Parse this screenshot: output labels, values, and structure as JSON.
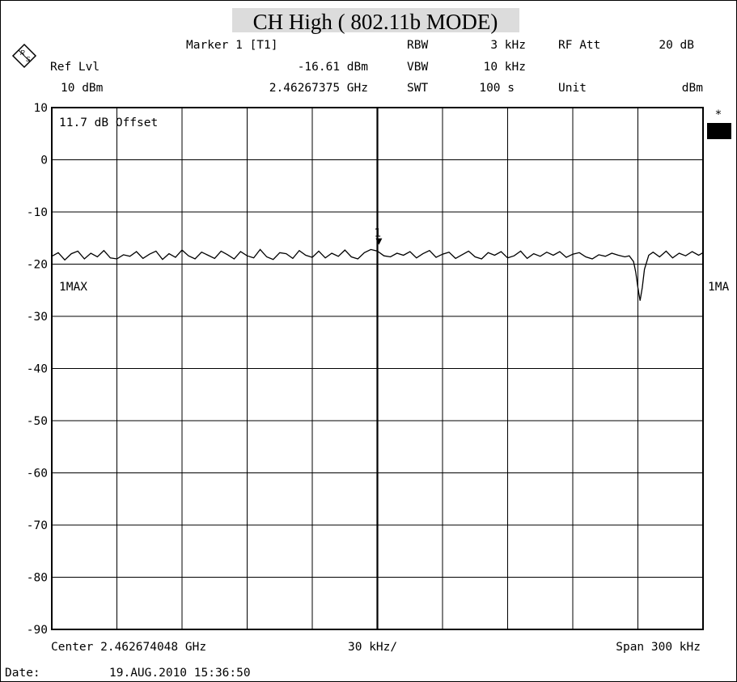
{
  "header": {
    "title": "CH High ( 802.11b MODE)",
    "marker_label": "Marker 1 [T1]",
    "marker_level": "-16.61 dBm",
    "marker_freq": "2.46267375 GHz",
    "ref_lvl_label": "Ref Lvl",
    "ref_lvl_value": "10 dBm",
    "rbw_label": "RBW",
    "rbw_value": "3 kHz",
    "vbw_label": "VBW",
    "vbw_value": "10 kHz",
    "swt_label": "SWT",
    "swt_value": "100 s",
    "rf_att_label": "RF Att",
    "rf_att_value": "20 dB",
    "unit_label": "Unit",
    "unit_value": "dBm"
  },
  "plot": {
    "offset_label": "11.7 dB Offset",
    "trace_label_left": "1MAX",
    "trace_label_right": "1MA",
    "marker_number": "1",
    "star": "*"
  },
  "footer": {
    "center": "Center 2.462674048 GHz",
    "div": "30 kHz/",
    "span": "Span 300 kHz",
    "date_label": "Date:",
    "date_value": "19.AUG.2010  15:36:50"
  },
  "chart_data": {
    "type": "line",
    "title": "CH High ( 802.11b MODE)",
    "xlabel": "",
    "ylabel": "dBm",
    "x_unit": "kHz offset from center",
    "xlim": [
      -150,
      150
    ],
    "ylim": [
      -90,
      10
    ],
    "yticks": [
      10,
      0,
      -10,
      -20,
      -30,
      -40,
      -50,
      -60,
      -70,
      -80,
      -90
    ],
    "grid": true,
    "series": [
      {
        "x": [
          -150,
          -147,
          -144,
          -141,
          -138,
          -135,
          -132,
          -129,
          -126,
          -123,
          -120,
          -117,
          -114,
          -111,
          -108,
          -105,
          -102,
          -99,
          -96,
          -93,
          -90,
          -87,
          -84,
          -81,
          -78,
          -75,
          -72,
          -69,
          -66,
          -63,
          -60,
          -57,
          -54,
          -51,
          -48,
          -45,
          -42,
          -39,
          -36,
          -33,
          -30,
          -27,
          -24,
          -21,
          -18,
          -15,
          -12,
          -9,
          -6,
          -3,
          0,
          3,
          6,
          9,
          12,
          15,
          18,
          21,
          24,
          27,
          30,
          33,
          36,
          39,
          42,
          45,
          48,
          51,
          54,
          57,
          60,
          63,
          66,
          69,
          72,
          75,
          78,
          81,
          84,
          87,
          90,
          93,
          96,
          99,
          102,
          105,
          108,
          111,
          114,
          116,
          118,
          119,
          120,
          121,
          122,
          123,
          125,
          127,
          130,
          133,
          136,
          139,
          142,
          145,
          148,
          150
        ],
        "y": [
          -18.5,
          -17.8,
          -19.2,
          -18.0,
          -17.5,
          -19.0,
          -17.9,
          -18.6,
          -17.4,
          -18.8,
          -19.0,
          -18.2,
          -18.5,
          -17.6,
          -18.9,
          -18.1,
          -17.5,
          -19.1,
          -18.0,
          -18.7,
          -17.3,
          -18.4,
          -19.0,
          -17.7,
          -18.3,
          -18.9,
          -17.5,
          -18.2,
          -19.0,
          -17.6,
          -18.4,
          -18.8,
          -17.2,
          -18.6,
          -19.1,
          -17.8,
          -18.0,
          -18.9,
          -17.4,
          -18.3,
          -18.7,
          -17.5,
          -18.8,
          -17.9,
          -18.5,
          -17.3,
          -18.6,
          -19.0,
          -17.8,
          -17.2,
          -17.5,
          -18.4,
          -18.6,
          -17.9,
          -18.3,
          -17.6,
          -18.8,
          -18.0,
          -17.4,
          -18.7,
          -18.1,
          -17.7,
          -18.9,
          -18.2,
          -17.5,
          -18.6,
          -19.0,
          -17.8,
          -18.3,
          -17.6,
          -18.8,
          -18.4,
          -17.5,
          -18.9,
          -18.0,
          -18.5,
          -17.7,
          -18.3,
          -17.6,
          -18.7,
          -18.1,
          -17.8,
          -18.6,
          -19.0,
          -18.2,
          -18.5,
          -17.9,
          -18.3,
          -18.6,
          -18.4,
          -19.5,
          -21.5,
          -24.5,
          -27.0,
          -24.5,
          -21.0,
          -18.3,
          -17.7,
          -18.6,
          -17.5,
          -18.8,
          -17.9,
          -18.4,
          -17.6,
          -18.3,
          -17.8
        ]
      }
    ],
    "marker": {
      "x": 0.7,
      "y": -16.61,
      "label": "1"
    }
  }
}
